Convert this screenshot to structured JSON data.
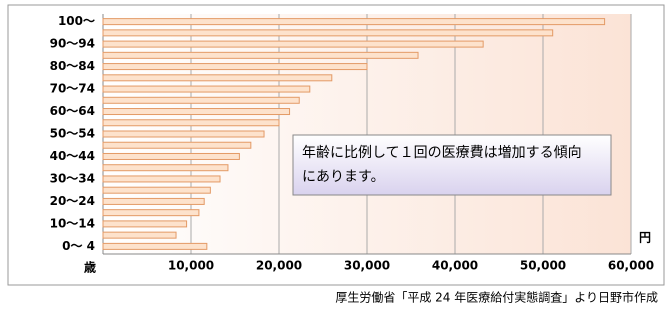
{
  "chart_data": {
    "type": "hbar",
    "categories": [
      "0～ 4",
      null,
      "10～14",
      null,
      "20～24",
      null,
      "30～34",
      null,
      "40～44",
      null,
      "50～54",
      null,
      "60～64",
      null,
      "70～74",
      null,
      "80～84",
      null,
      "90～94",
      null,
      "100～"
    ],
    "values": [
      11800,
      8300,
      9500,
      10900,
      11500,
      12200,
      13300,
      14200,
      15500,
      16800,
      18300,
      20000,
      21200,
      22300,
      23500,
      26000,
      30000,
      35800,
      43200,
      51100,
      57000
    ],
    "color": "#fde2cc",
    "edge_color": "#e39a66",
    "xlim": [
      0,
      60000
    ],
    "xticks": [
      {
        "value": 10000,
        "label": "10,000"
      },
      {
        "value": 20000,
        "label": "20,000"
      },
      {
        "value": 30000,
        "label": "30,000"
      },
      {
        "value": 40000,
        "label": "40,000"
      },
      {
        "value": 50000,
        "label": "50,000"
      },
      {
        "value": 60000,
        "label": "60,000"
      }
    ],
    "grid": true,
    "y_axis_label": "歳",
    "x_unit": "円",
    "annotation": [
      "年齢に比例して１回の医療費は増加する傾向",
      "にあります。"
    ],
    "source": "厚生労働省「平成 24 年医療給付実態調査」より日野市作成"
  }
}
